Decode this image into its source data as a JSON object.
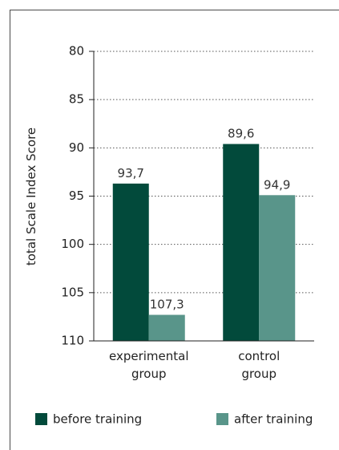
{
  "chart_data": {
    "type": "bar",
    "categories": [
      [
        "experimental",
        "group"
      ],
      [
        "control",
        "group"
      ]
    ],
    "series": [
      {
        "name": "before training",
        "values": [
          93.7,
          89.6
        ],
        "value_labels": [
          "93,7",
          "89,6"
        ],
        "color": "#024a3b"
      },
      {
        "name": "after training",
        "values": [
          107.3,
          94.9
        ],
        "value_labels": [
          "107,3",
          "94,9"
        ],
        "color": "#59958a"
      }
    ],
    "title": "",
    "xlabel": "",
    "ylabel": "total Scale Index Score",
    "y_tick_labels": [
      "80",
      "85",
      "90",
      "95",
      "100",
      "105",
      "110"
    ],
    "grid": true,
    "legend": "bottom"
  }
}
